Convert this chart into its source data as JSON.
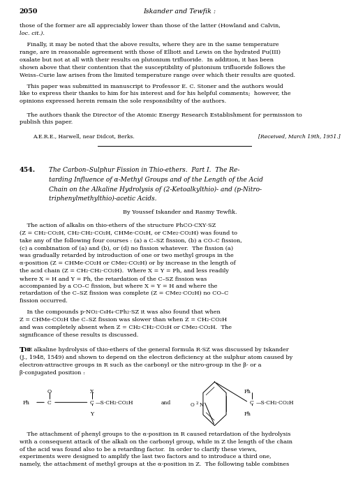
{
  "bg_color": "#ffffff",
  "page_number": "2050",
  "header_title": "Iskander and Tewfik :",
  "address_line": "A.E.R.E., Harwell, near Didcot, Berks.",
  "received_line": "[Received, March 19th, 1951.]",
  "lm": 0.055,
  "rm": 0.975,
  "fs_body": 5.85,
  "fs_header": 6.8,
  "fs_title": 6.5,
  "fs_authors": 5.85,
  "lh": 0.0155
}
